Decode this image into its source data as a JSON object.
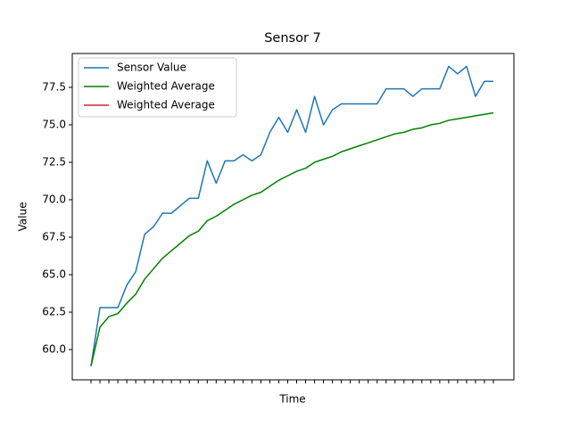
{
  "chart_data": {
    "type": "line",
    "title": "Sensor 7",
    "x_label": "Time",
    "y_label": "Value",
    "categories": [
      null,
      null,
      null,
      null,
      null,
      null,
      null,
      null,
      null,
      null,
      null,
      null,
      null,
      null,
      null,
      null,
      null,
      null,
      null,
      null,
      null,
      null,
      null,
      null,
      null,
      null,
      null,
      null,
      null,
      null,
      null,
      null,
      null,
      null,
      null,
      null,
      null,
      null,
      null,
      null,
      null,
      null,
      null,
      null,
      null,
      null
    ],
    "series": [
      {
        "name": "Sensor Value",
        "color": "#1f77b4",
        "values": [
          58.9,
          62.8,
          62.8,
          62.8,
          64.3,
          65.2,
          67.7,
          68.2,
          69.1,
          69.1,
          69.6,
          70.1,
          70.1,
          72.6,
          71.1,
          72.6,
          72.6,
          73.0,
          72.6,
          73.0,
          74.5,
          75.5,
          74.5,
          76.0,
          74.5,
          76.9,
          75.0,
          76.0,
          76.4,
          76.4,
          76.4,
          76.4,
          76.4,
          77.4,
          77.4,
          77.4,
          76.9,
          77.4,
          77.4,
          77.4,
          78.9,
          78.4,
          78.9,
          76.9,
          77.9,
          77.9
        ]
      },
      {
        "name": "Weighted Average",
        "color": "#008000",
        "values": [
          58.9,
          61.5,
          62.2,
          62.4,
          63.1,
          63.7,
          64.7,
          65.4,
          66.1,
          66.6,
          67.1,
          67.6,
          67.9,
          68.6,
          68.9,
          69.3,
          69.7,
          70.0,
          70.3,
          70.5,
          70.9,
          71.3,
          71.6,
          71.9,
          72.1,
          72.5,
          72.7,
          72.9,
          73.2,
          73.4,
          73.6,
          73.8,
          74.0,
          74.2,
          74.4,
          74.5,
          74.7,
          74.8,
          75.0,
          75.1,
          75.3,
          75.4,
          75.5,
          75.6,
          75.7,
          75.8
        ]
      },
      {
        "name": "Weighted Average",
        "color": "#d62728",
        "values": [
          null,
          null,
          null,
          null,
          null,
          null,
          null,
          null,
          null,
          null,
          null,
          null,
          null,
          null,
          null,
          null,
          null,
          null,
          null,
          null,
          null,
          null,
          null,
          null,
          null,
          null,
          null,
          null,
          null,
          null,
          null,
          null,
          null,
          null,
          null,
          null,
          null,
          null,
          null,
          null,
          null,
          null,
          null,
          null,
          null,
          null
        ]
      }
    ],
    "ylim": [
      57.98,
      79.76
    ],
    "yticks": [
      {
        "value": 60,
        "label": "60.0"
      },
      {
        "value": 62.5,
        "label": "62.5"
      },
      {
        "value": 65,
        "label": "65.0"
      },
      {
        "value": 67.5,
        "label": "67.5"
      },
      {
        "value": 70,
        "label": "70.0"
      },
      {
        "value": 72.5,
        "label": "72.5"
      },
      {
        "value": 75,
        "label": "75.0"
      },
      {
        "value": 77.5,
        "label": "77.5"
      }
    ],
    "grid": false,
    "legend": "upper left"
  }
}
